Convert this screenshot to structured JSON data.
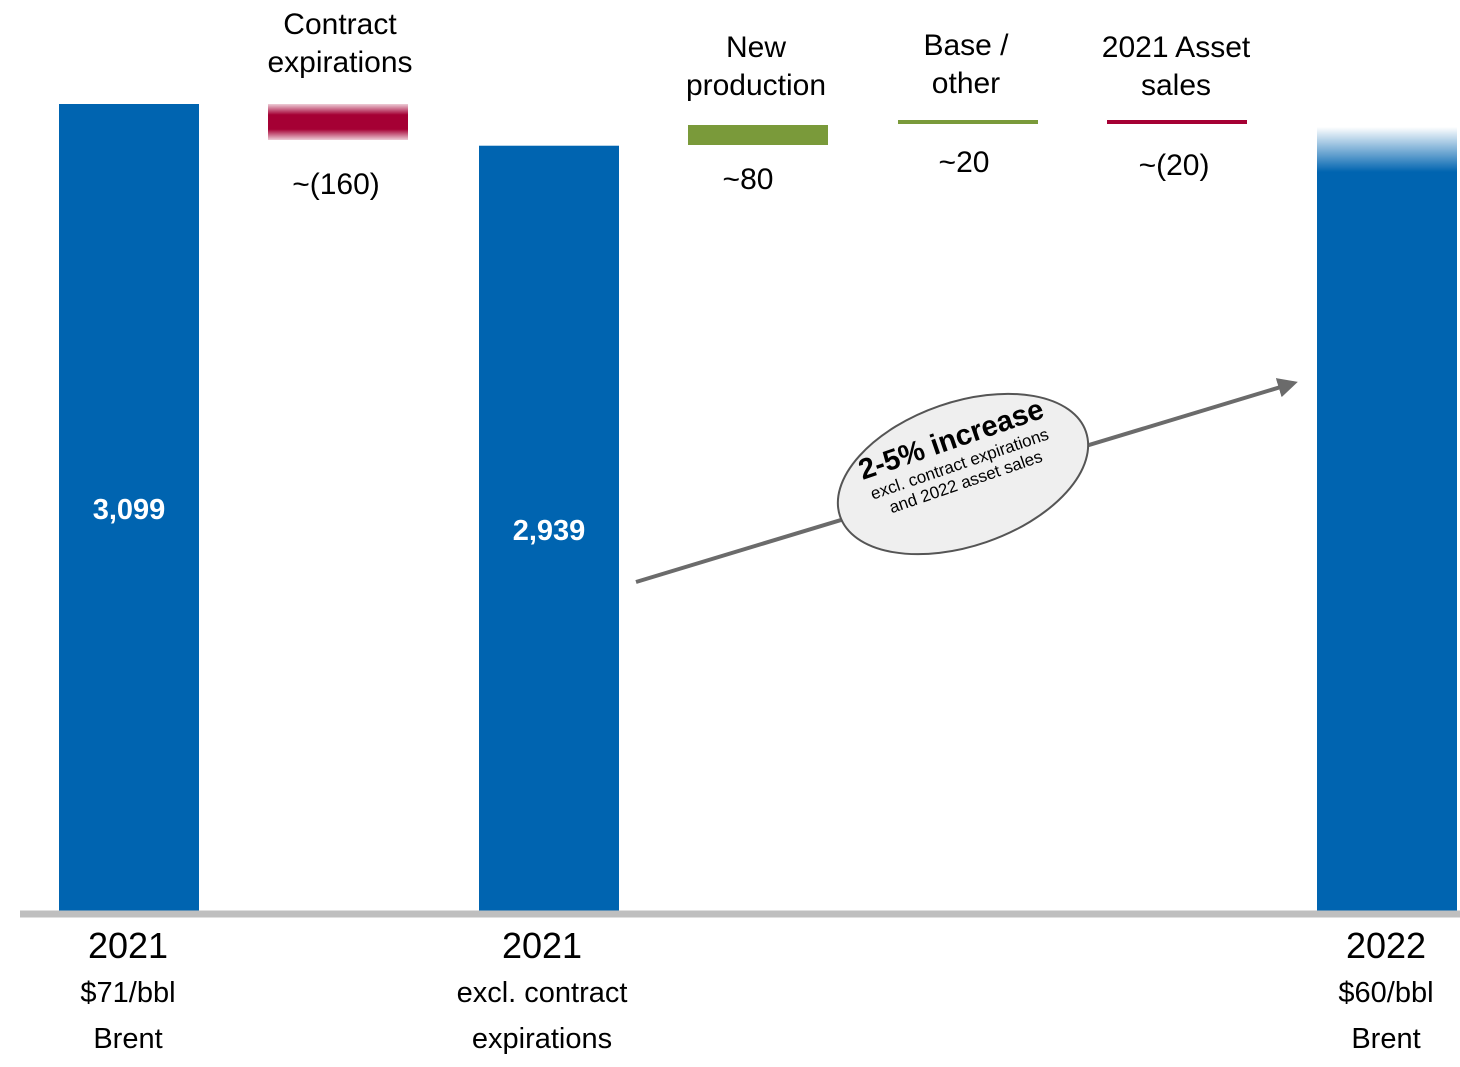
{
  "chart_data": {
    "type": "bar",
    "subtype": "waterfall",
    "bars": [
      {
        "name": "2021",
        "value": 3099,
        "label": "3,099",
        "sub_lines": [
          "$71/bbl",
          "Brent"
        ]
      },
      {
        "name": "2021",
        "value": 2939,
        "label": "2,939",
        "sub_lines": [
          "excl. contract",
          "expirations"
        ]
      },
      {
        "name": "2022",
        "value": null,
        "label": "",
        "sub_lines": [
          "$60/bbl",
          "Brent"
        ]
      }
    ],
    "steps": [
      {
        "label_lines": [
          "Contract",
          "expirations"
        ],
        "value": -160,
        "value_label": "~(160)",
        "color": "#A50034"
      },
      {
        "label_lines": [
          "New",
          "production"
        ],
        "value": 80,
        "value_label": "~80",
        "color": "#7A9A3A"
      },
      {
        "label_lines": [
          "Base /",
          "other"
        ],
        "value": 20,
        "value_label": "~20",
        "color": "#7A9A3A"
      },
      {
        "label_lines": [
          "2021 Asset",
          "sales"
        ],
        "value": -20,
        "value_label": "~(20)",
        "color": "#A50034"
      }
    ],
    "annotation": {
      "headline": "2-5% increase",
      "detail_lines": [
        "excl. contract expirations",
        "and 2022 asset sales"
      ]
    },
    "colors": {
      "bar": "#0064B0",
      "negative": "#A50034",
      "positive": "#7A9A3A",
      "baseline": "#BFBFBF",
      "arrow": "#6B6B6B"
    }
  }
}
